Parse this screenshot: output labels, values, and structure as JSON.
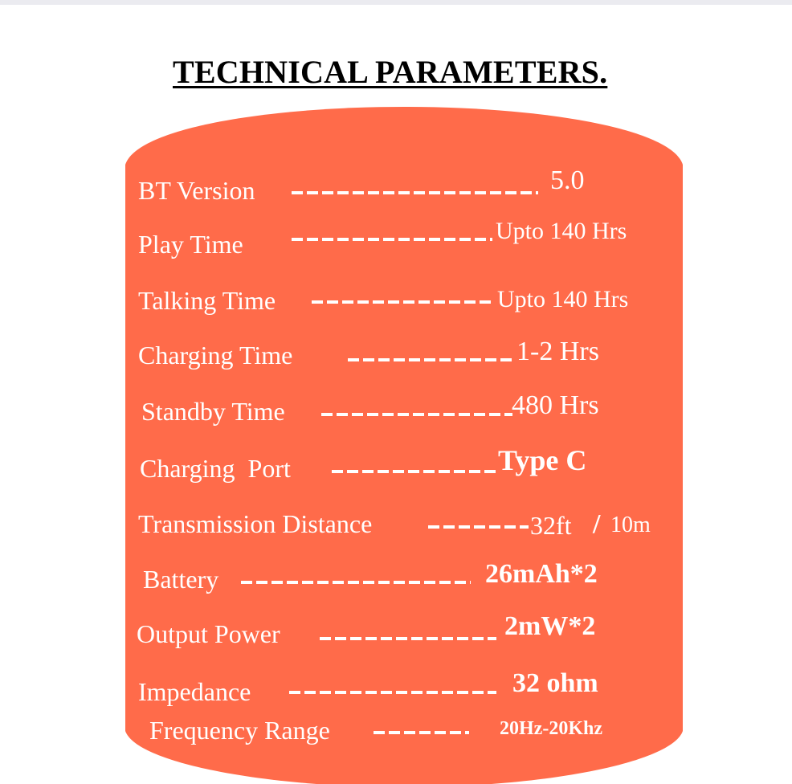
{
  "title": "TECHNICAL PARAMETERS.",
  "colors": {
    "panel": "#ff6b4a",
    "text": "#ffffff",
    "title": "#000000"
  },
  "params": [
    {
      "label": "BT Version",
      "value": "5.0"
    },
    {
      "label": "Play Time",
      "value": "Upto 140 Hrs"
    },
    {
      "label": "Talking Time",
      "value": "Upto 140 Hrs"
    },
    {
      "label": "Charging Time",
      "value": "1-2 Hrs"
    },
    {
      "label": "Standby Time",
      "value": "480 Hrs"
    },
    {
      "label": "Charging  Port",
      "value": "Type C"
    },
    {
      "label": "Transmission Distance",
      "value": "32ft",
      "separator": "/",
      "value2": "10m"
    },
    {
      "label": "Battery",
      "value": "26mAh*2"
    },
    {
      "label": "Output Power",
      "value": "2mW*2"
    },
    {
      "label": "Impedance",
      "value": "32 ohm"
    },
    {
      "label": "Frequency Range",
      "value": "20Hz-20Khz"
    }
  ]
}
